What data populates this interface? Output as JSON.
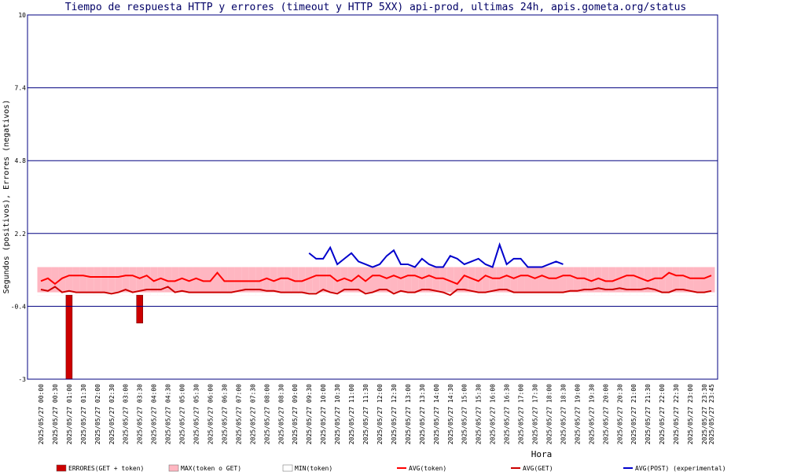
{
  "chart_data": {
    "type": "line",
    "title": "Tiempo de respuesta HTTP y errores (timeout y HTTP 5XX) api-prod, ultimas 24h, apis.gometa.org/status",
    "x_label": "Hora",
    "y_label": "Segundos (positivos), Errores (negativos)",
    "categories": [
      "2025/05/27 00:00",
      null,
      "2025/05/27 00:30",
      null,
      "2025/05/27 01:00",
      null,
      "2025/05/27 01:30",
      null,
      "2025/05/27 02:00",
      null,
      "2025/05/27 02:30",
      null,
      "2025/05/27 03:00",
      null,
      "2025/05/27 03:30",
      null,
      "2025/05/27 04:00",
      null,
      "2025/05/27 04:30",
      null,
      "2025/05/27 05:00",
      null,
      "2025/05/27 05:30",
      null,
      "2025/05/27 06:00",
      null,
      "2025/05/27 06:30",
      null,
      "2025/05/27 07:00",
      null,
      "2025/05/27 07:30",
      null,
      "2025/05/27 08:00",
      null,
      "2025/05/27 08:30",
      null,
      "2025/05/27 09:00",
      null,
      "2025/05/27 09:30",
      null,
      "2025/05/27 10:00",
      null,
      "2025/05/27 10:30",
      null,
      "2025/05/27 11:00",
      null,
      "2025/05/27 11:30",
      null,
      "2025/05/27 12:00",
      null,
      "2025/05/27 12:30",
      null,
      "2025/05/27 13:00",
      null,
      "2025/05/27 13:30",
      null,
      "2025/05/27 14:00",
      null,
      "2025/05/27 14:30",
      null,
      "2025/05/27 15:00",
      null,
      "2025/05/27 15:30",
      null,
      "2025/05/27 16:00",
      null,
      "2025/05/27 16:30",
      null,
      "2025/05/27 17:00",
      null,
      "2025/05/27 17:30",
      null,
      "2025/05/27 18:00",
      null,
      "2025/05/27 18:30",
      null,
      "2025/05/27 19:00",
      null,
      "2025/05/27 19:30",
      null,
      "2025/05/27 20:00",
      null,
      "2025/05/27 20:30",
      null,
      "2025/05/27 21:00",
      null,
      "2025/05/27 21:30",
      null,
      "2025/05/27 22:00",
      null,
      "2025/05/27 22:30",
      null,
      "2025/05/27 23:00",
      null,
      "2025/05/27 23:30",
      "2025/05/27 23:45"
    ],
    "ylim": [
      -3,
      10
    ],
    "yticks": [
      -3,
      -0.4,
      2.2,
      4.8,
      7.4,
      10
    ],
    "grid": true,
    "legend": "bottom",
    "series": [
      {
        "name": "ERRORES(GET + token)",
        "kind": "bar",
        "color": "#cc0000",
        "values": [
          null,
          null,
          null,
          null,
          -3,
          null,
          null,
          null,
          null,
          null,
          null,
          null,
          null,
          null,
          -1,
          null,
          null,
          null,
          null,
          null,
          null,
          null,
          null,
          null,
          null,
          null,
          null,
          null,
          null,
          null,
          null,
          null,
          null,
          null,
          null,
          null,
          null,
          null,
          null,
          null,
          null,
          null,
          null,
          null,
          null,
          null,
          null,
          null,
          null,
          null,
          null,
          null,
          null,
          null,
          null,
          null,
          null,
          null,
          null,
          null,
          null,
          null,
          null,
          null,
          null,
          null,
          null,
          null,
          null,
          null,
          null,
          null,
          null,
          null,
          null,
          null,
          null,
          null,
          null,
          null,
          null,
          null,
          null,
          null,
          null,
          null,
          null,
          null,
          null,
          null,
          null,
          null,
          null,
          null,
          null,
          null
        ]
      },
      {
        "name": "MAX(token o GET)",
        "kind": "area",
        "color": "#ffb6c1",
        "values": [
          1,
          1,
          1,
          1,
          1,
          1,
          1,
          1,
          1,
          1,
          1,
          1,
          1,
          1,
          1,
          1,
          1,
          1,
          1,
          1,
          1,
          1,
          1,
          1,
          1,
          1,
          1,
          1,
          1,
          1,
          1,
          1,
          1,
          1,
          1,
          1,
          1,
          1,
          1,
          1,
          1,
          1,
          1,
          1,
          1,
          1,
          1,
          1,
          1,
          1,
          1,
          1,
          1,
          1,
          1,
          1,
          1,
          1,
          1,
          1,
          1,
          1,
          1,
          1,
          1,
          1,
          1,
          1,
          1,
          1,
          1,
          1,
          1,
          1,
          1,
          1,
          1,
          1,
          1,
          1,
          1,
          1,
          1,
          1,
          1,
          1,
          1,
          1,
          1,
          1,
          1,
          1,
          1,
          1,
          1,
          1
        ]
      },
      {
        "name": "MIN(token)",
        "kind": "area",
        "color": "#ffffff",
        "values": [
          0.1,
          0.1,
          0.1,
          0.1,
          0.1,
          0.1,
          0.1,
          0.1,
          0.1,
          0.1,
          0.1,
          0.1,
          0.1,
          0.1,
          0.1,
          0.1,
          0.1,
          0.1,
          0.1,
          0.1,
          0.1,
          0.1,
          0.1,
          0.1,
          0.1,
          0.1,
          0.1,
          0.1,
          0.1,
          0.1,
          0.1,
          0.1,
          0.1,
          0.1,
          0.1,
          0.1,
          0.1,
          0.1,
          0.1,
          0.1,
          0.1,
          0.1,
          0.1,
          0.1,
          0.1,
          0.1,
          0.1,
          0.1,
          0.1,
          0.1,
          0.1,
          0.1,
          0.1,
          0.1,
          0.1,
          0.1,
          0.1,
          0.1,
          0.1,
          0.1,
          0.1,
          0.1,
          0.1,
          0.1,
          0.1,
          0.1,
          0.1,
          0.1,
          0.1,
          0.1,
          0.1,
          0.1,
          0.1,
          0.1,
          0.1,
          0.1,
          0.1,
          0.1,
          0.1,
          0.1,
          0.1,
          0.1,
          0.1,
          0.1,
          0.1,
          0.1,
          0.1,
          0.1,
          0.1,
          0.1,
          0.1,
          0.1,
          0.1,
          0.1,
          0.1,
          0.1
        ]
      },
      {
        "name": "AVG(token)",
        "kind": "line",
        "color": "#ff0000",
        "values": [
          0.5,
          0.6,
          0.4,
          0.6,
          0.7,
          0.7,
          0.7,
          0.65,
          0.65,
          0.65,
          0.65,
          0.65,
          0.7,
          0.7,
          0.6,
          0.7,
          0.5,
          0.6,
          0.5,
          0.5,
          0.6,
          0.5,
          0.6,
          0.5,
          0.5,
          0.8,
          0.5,
          0.5,
          0.5,
          0.5,
          0.5,
          0.5,
          0.6,
          0.5,
          0.6,
          0.6,
          0.5,
          0.5,
          0.6,
          0.7,
          0.7,
          0.7,
          0.5,
          0.6,
          0.5,
          0.7,
          0.5,
          0.7,
          0.7,
          0.6,
          0.7,
          0.6,
          0.7,
          0.7,
          0.6,
          0.7,
          0.6,
          0.6,
          0.5,
          0.4,
          0.7,
          0.6,
          0.5,
          0.7,
          0.6,
          0.6,
          0.7,
          0.6,
          0.7,
          0.7,
          0.6,
          0.7,
          0.6,
          0.6,
          0.7,
          0.7,
          0.6,
          0.6,
          0.5,
          0.6,
          0.5,
          0.5,
          0.6,
          0.7,
          0.7,
          0.6,
          0.5,
          0.6,
          0.6,
          0.8,
          0.7,
          0.7,
          0.6,
          0.6,
          0.6,
          0.7
        ]
      },
      {
        "name": "AVG(GET)",
        "kind": "line",
        "color": "#cc0000",
        "values": [
          0.2,
          0.15,
          0.3,
          0.1,
          0.15,
          0.1,
          0.1,
          0.1,
          0.1,
          0.1,
          0.05,
          0.1,
          0.2,
          0.1,
          0.15,
          0.2,
          0.2,
          0.2,
          0.3,
          0.1,
          0.15,
          0.1,
          0.1,
          0.1,
          0.1,
          0.1,
          0.1,
          0.1,
          0.15,
          0.2,
          0.2,
          0.2,
          0.15,
          0.15,
          0.1,
          0.1,
          0.1,
          0.1,
          0.05,
          0.05,
          0.2,
          0.1,
          0.05,
          0.2,
          0.2,
          0.2,
          0.05,
          0.1,
          0.2,
          0.2,
          0.05,
          0.15,
          0.1,
          0.1,
          0.2,
          0.2,
          0.15,
          0.1,
          0,
          0.2,
          0.2,
          0.15,
          0.1,
          0.1,
          0.15,
          0.2,
          0.2,
          0.1,
          0.1,
          0.1,
          0.1,
          0.1,
          0.1,
          0.1,
          0.1,
          0.15,
          0.15,
          0.2,
          0.2,
          0.25,
          0.2,
          0.2,
          0.25,
          0.2,
          0.2,
          0.2,
          0.25,
          0.2,
          0.1,
          0.1,
          0.2,
          0.2,
          0.15,
          0.1,
          0.1,
          0.15
        ]
      },
      {
        "name": "AVG(POST) (experimental)",
        "kind": "line",
        "color": "#0000cc",
        "values": [
          null,
          null,
          null,
          null,
          null,
          null,
          null,
          null,
          null,
          null,
          null,
          null,
          null,
          null,
          null,
          null,
          null,
          null,
          null,
          null,
          null,
          null,
          null,
          null,
          null,
          null,
          null,
          null,
          null,
          null,
          null,
          null,
          null,
          null,
          null,
          null,
          null,
          null,
          1.5,
          1.3,
          1.3,
          1.7,
          1.1,
          1.3,
          1.5,
          1.2,
          1.1,
          1,
          1.1,
          1.4,
          1.6,
          1.1,
          1.1,
          1,
          1.3,
          1.1,
          1,
          1,
          1.4,
          1.3,
          1.1,
          1.2,
          1.3,
          1.1,
          1,
          1.8,
          1.1,
          1.3,
          1.3,
          1,
          1,
          1,
          1.1,
          1.2,
          1.1,
          null,
          null,
          null,
          null,
          null,
          null,
          null,
          null,
          null,
          null,
          null,
          null,
          null,
          null,
          null,
          null,
          null,
          null,
          null,
          null,
          null
        ]
      }
    ]
  }
}
